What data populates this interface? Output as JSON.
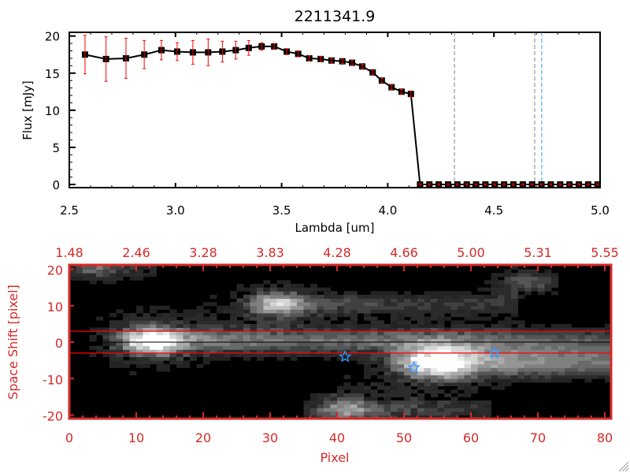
{
  "chart_data": [
    {
      "type": "line",
      "title": "2211341.9",
      "xlabel": "Lambda [um]",
      "ylabel": "Flux [mJy]",
      "xlim": [
        2.5,
        5.0
      ],
      "ylim": [
        0,
        20
      ],
      "xticks": [
        "2.5",
        "3.0",
        "3.5",
        "4.0",
        "4.5",
        "5.0"
      ],
      "yticks": [
        "0",
        "5",
        "10",
        "15",
        "20"
      ],
      "series": [
        {
          "name": "flux",
          "x": [
            2.574,
            2.673,
            2.767,
            2.853,
            2.934,
            3.008,
            3.082,
            3.154,
            3.221,
            3.284,
            3.345,
            3.406,
            3.465,
            3.524,
            3.578,
            3.63,
            3.684,
            3.735,
            3.786,
            3.832,
            3.88,
            3.929,
            3.972,
            4.018,
            4.065,
            4.109,
            4.152,
            4.196,
            4.24,
            4.284,
            4.328,
            4.372,
            4.416,
            4.46,
            4.504,
            4.548,
            4.592,
            4.636,
            4.68,
            4.724,
            4.768,
            4.812,
            4.856,
            4.9,
            4.944,
            4.988
          ],
          "y": [
            17.5,
            16.9,
            17.0,
            17.5,
            18.1,
            17.9,
            17.8,
            17.8,
            17.9,
            18.1,
            18.4,
            18.6,
            18.6,
            17.9,
            17.6,
            17.0,
            16.9,
            16.7,
            16.6,
            16.4,
            15.9,
            15.1,
            14.0,
            13.1,
            12.5,
            12.2,
            0,
            0,
            0,
            0,
            0,
            0,
            0,
            0,
            0,
            0,
            0,
            0,
            0,
            0,
            0,
            0,
            0,
            0,
            0,
            0
          ],
          "yerr": [
            2.6,
            3.0,
            2.7,
            1.9,
            1.3,
            1.2,
            1.6,
            1.8,
            1.4,
            1.2,
            1.0,
            0.5,
            0.4,
            0.4,
            0.4,
            0.35,
            0.35,
            0.3,
            0.3,
            0.3,
            0.3,
            0.3,
            0.3,
            0.3,
            0.3,
            0.4,
            0.1,
            0.1,
            0.1,
            0.1,
            0.1,
            0.1,
            0.1,
            0.1,
            0.1,
            0.1,
            0.1,
            0.1,
            0.1,
            0.1,
            0.1,
            0.1,
            0.1,
            0.1,
            0.1,
            0.1
          ]
        }
      ],
      "vlines": [
        {
          "x": 4.314,
          "color": "#808080"
        },
        {
          "x": 4.692,
          "color": "#808080"
        },
        {
          "x": 4.725,
          "color": "#3399ff"
        }
      ],
      "hline_zero_from": 4.152,
      "colors": {
        "line": "#000000",
        "errorbar": "#ff0000",
        "hline": "#ff0000"
      }
    },
    {
      "type": "heatmap",
      "xlabel": "Pixel",
      "ylabel": "Space Shift [pixel]",
      "xlim": [
        0,
        81
      ],
      "ylim": [
        -21,
        21
      ],
      "xticks": [
        "0",
        "10",
        "20",
        "30",
        "40",
        "50",
        "60",
        "70",
        "80"
      ],
      "yticks": [
        "-20",
        "-10",
        "0",
        "10",
        "20"
      ],
      "top_axis_labels": [
        "1.48",
        "2.46",
        "3.28",
        "3.83",
        "4.28",
        "4.66",
        "5.00",
        "5.31",
        "5.55"
      ],
      "sources": [
        {
          "pixel": 11,
          "shift": 0,
          "peak": 1.0,
          "trail_to": 81,
          "trail_level": 0.5,
          "width": 2.6
        },
        {
          "pixel": 30,
          "shift": 10,
          "peak": 0.75,
          "trail_to": 66,
          "trail_level": 0.3,
          "width": 2.3
        },
        {
          "pixel": 53,
          "shift": -6,
          "peak": 0.95,
          "trail_to": 81,
          "trail_level": 0.68,
          "width": 3.0
        },
        {
          "pixel": 40,
          "shift": -19,
          "peak": 0.6,
          "trail_to": 62,
          "trail_level": 0.28,
          "width": 2.2
        },
        {
          "pixel": 3,
          "shift": 20,
          "peak": 0.4,
          "trail_to": 12,
          "trail_level": 0.2,
          "width": 2.0
        },
        {
          "pixel": 67,
          "shift": 16,
          "peak": 0.35,
          "trail_to": 72,
          "trail_level": 0.2,
          "width": 2.0
        }
      ],
      "hlines": [
        {
          "shift": 3,
          "color": "#ff0000"
        },
        {
          "shift": 0,
          "color": "#000000"
        },
        {
          "shift": -3,
          "color": "#ff0000"
        }
      ],
      "stars": [
        {
          "pixel": 41.2,
          "shift": -4
        },
        {
          "pixel": 51.5,
          "shift": -7
        },
        {
          "pixel": 63.5,
          "shift": -3
        }
      ],
      "colors": {
        "axis": "#d42a2a",
        "star": "#3399ff"
      }
    }
  ],
  "icons": {
    "resize": "resize-grip-icon"
  }
}
